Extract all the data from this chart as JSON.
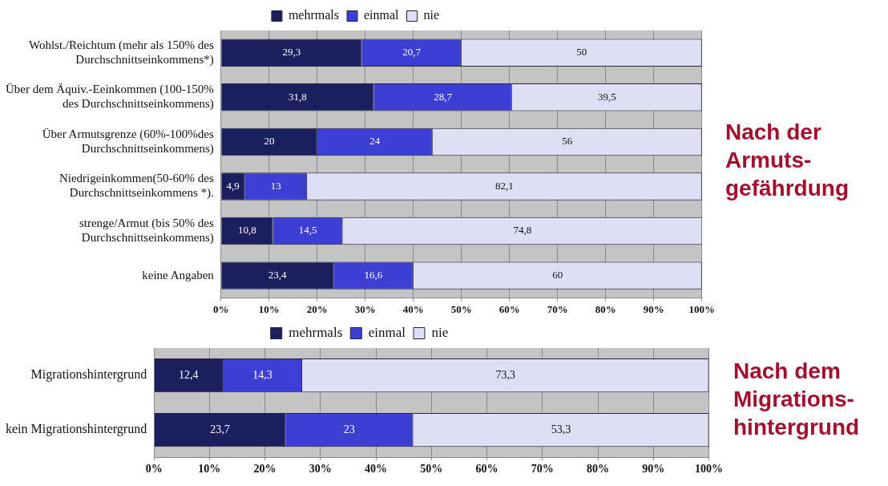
{
  "chart_data": [
    {
      "type": "bar",
      "title": "Nach der Armuts-gefährdung",
      "orientation": "horizontal",
      "stacked": true,
      "categories": [
        "Wohlst./Reichtum (mehr als 150% des Durchschnittseinkommens*)",
        "Über dem Äquiv.-Eeinkommen (100-150% des Durchschnittseinkommens)",
        "Über Armutsgrenze (60%-100%des Durchschnittseinkommens)",
        "Niedrigeinkommen(50-60% des Durchschnittseinkommens *).",
        "strenge/Armut (bis 50% des Durchschnittseinkommens)",
        "keine Angaben"
      ],
      "series": [
        {
          "name": "mehrmals",
          "color": "#1c1f5e",
          "values": [
            29.3,
            31.8,
            20,
            4.9,
            10.8,
            23.4
          ],
          "value_labels": [
            "29,3",
            "31,8",
            "20",
            "4,9",
            "10,8",
            "23,4"
          ]
        },
        {
          "name": "einmal",
          "color": "#3b3fd4",
          "values": [
            20.7,
            28.7,
            24,
            13,
            14.5,
            16.6
          ],
          "value_labels": [
            "20,7",
            "28,7",
            "24",
            "13",
            "14,5",
            "16,6"
          ]
        },
        {
          "name": "nie",
          "color": "#dedff5",
          "values": [
            50,
            39.5,
            56,
            82.1,
            74.8,
            60
          ],
          "value_labels": [
            "50",
            "39,5",
            "56",
            "82,1",
            "74,8",
            "60"
          ]
        }
      ],
      "xlim": [
        0,
        100
      ],
      "xticks": [
        {
          "value": 0,
          "label": "0%"
        },
        {
          "value": 10,
          "label": "10%"
        },
        {
          "value": 20,
          "label": "20%"
        },
        {
          "value": 30,
          "label": "30%"
        },
        {
          "value": 40,
          "label": "40%"
        },
        {
          "value": 50,
          "label": "50%"
        },
        {
          "value": 60,
          "label": "60%"
        },
        {
          "value": 70,
          "label": "70%"
        },
        {
          "value": 80,
          "label": "80%"
        },
        {
          "value": 90,
          "label": "90%"
        },
        {
          "value": 100,
          "label": "100%"
        }
      ],
      "grid": "x",
      "legend": "top"
    },
    {
      "type": "bar",
      "title": "Nach dem Migrations-hintergrund",
      "orientation": "horizontal",
      "stacked": true,
      "categories": [
        "Migrationshintergrund",
        "kein Migrationshintergrund"
      ],
      "series": [
        {
          "name": "mehrmals",
          "color": "#1c1f5e",
          "values": [
            12.4,
            23.7
          ],
          "value_labels": [
            "12,4",
            "23,7"
          ]
        },
        {
          "name": "einmal",
          "color": "#3b3fd4",
          "values": [
            14.3,
            23
          ],
          "value_labels": [
            "14,3",
            "23"
          ]
        },
        {
          "name": "nie",
          "color": "#dedff5",
          "values": [
            73.3,
            53.3
          ],
          "value_labels": [
            "73,3",
            "53,3"
          ]
        }
      ],
      "xlim": [
        0,
        100
      ],
      "xticks": [
        {
          "value": 0,
          "label": "0%"
        },
        {
          "value": 10,
          "label": "10%"
        },
        {
          "value": 20,
          "label": "20%"
        },
        {
          "value": 30,
          "label": "30%"
        },
        {
          "value": 40,
          "label": "40%"
        },
        {
          "value": 50,
          "label": "50%"
        },
        {
          "value": 60,
          "label": "60%"
        },
        {
          "value": 70,
          "label": "70%"
        },
        {
          "value": 80,
          "label": "80%"
        },
        {
          "value": 90,
          "label": "90%"
        },
        {
          "value": 100,
          "label": "100%"
        }
      ],
      "grid": "x",
      "legend": "top"
    }
  ]
}
